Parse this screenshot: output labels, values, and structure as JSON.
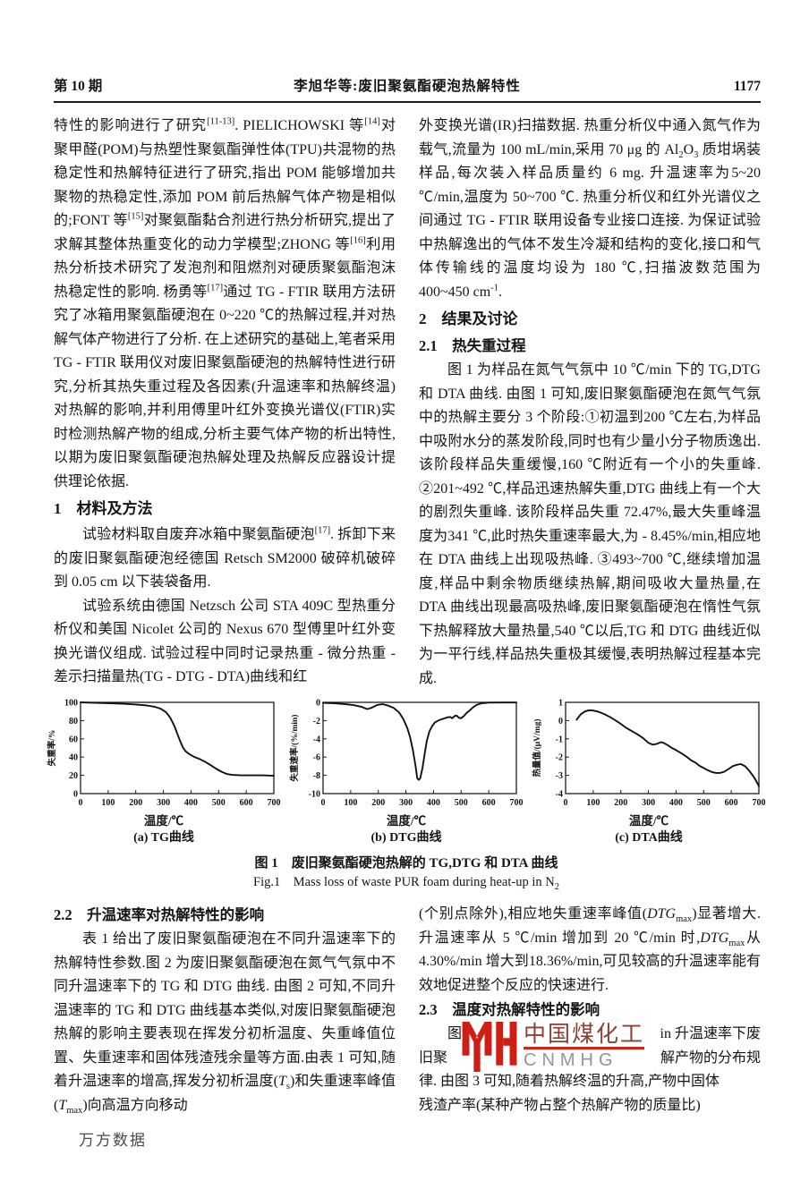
{
  "header": {
    "issue": "第 10 期",
    "title": "李旭华等:废旧聚氨酯硬泡热解特性",
    "page_number": "1177"
  },
  "left_top": {
    "p1": "特性的影响进行了研究<sup>[11-13]</sup>. PIELICHOWSKI 等<sup>[14]</sup>对聚甲醛(POM)与热塑性聚氨酯弹性体(TPU)共混物的热稳定性和热解特征进行了研究,指出 POM 能够增加共聚物的热稳定性,添加 POM 前后热解气体产物是相似的;FONT 等<sup>[15]</sup>对聚氨酯黏合剂进行热分析研究,提出了求解其整体热重变化的动力学模型;ZHONG 等<sup>[16]</sup>利用热分析技术研究了发泡剂和阻燃剂对硬质聚氨酯泡沫热稳定性的影响. 杨勇等<sup>[17]</sup>通过 TG - FTIR 联用方法研究了冰箱用聚氨酯硬泡在 0~220 ℃的热解过程,并对热解气体产物进行了分析. 在上述研究的基础上,笔者采用 TG - FTIR 联用仪对废旧聚氨酯硬泡的热解特性进行研究,分析其热失重过程及各因素(升温速率和热解终温)对热解的影响,并利用傅里叶红外变换光谱仪(FTIR)实时检测热解产物的组成,分析主要气体产物的析出特性,以期为废旧聚氨酯硬泡热解处理及热解反应器设计提供理论依据.",
    "h1": "1　材料及方法",
    "p2": "试验材料取自废弃冰箱中聚氨酯硬泡<sup>[17]</sup>. 拆卸下来的废旧聚氨酯硬泡经德国 Retsch SM2000 破碎机破碎到 0.05 cm 以下装袋备用.",
    "p3": "试验系统由德国 Netzsch 公司 STA 409C 型热重分析仪和美国 Nicolet 公司的 Nexus 670 型傅里叶红外变换光谱仪组成. 试验过程中同时记录热重 - 微分热重 - 差示扫描量热(TG - DTG - DTA)曲线和红"
  },
  "right_top": {
    "p1": "外变换光谱(IR)扫描数据. 热重分析仪中通入氮气作为载气,流量为 100 mL/min,采用 70 μg 的 Al<sub>2</sub>O<sub>3</sub> 质坩埚装样品,每次装入样品质量约 6 mg. 升温速率为5~20 ℃/min,温度为 50~700 ℃. 热重分析仪和红外光谱仪之间通过 TG - FTIR 联用设备专业接口连接. 为保证试验中热解逸出的气体不发生冷凝和结构的变化,接口和气体传输线的温度均设为 180 ℃,扫描波数范围为 400~450 cm<sup>-1</sup>.",
    "h2": "2　结果及讨论",
    "h21": "2.1　热失重过程",
    "p2": "图 1 为样品在氮气气氛中 10 ℃/min 下的 TG,DTG 和 DTA 曲线. 由图 1 可知,废旧聚氨酯硬泡在氮气气氛中的热解主要分 3 个阶段:①初温到200 ℃左右,为样品中吸附水分的蒸发阶段,同时也有少量小分子物质逸出. 该阶段样品失重缓慢,160 ℃附近有一个小的失重峰. ②201~492 ℃,样品迅速热解失重,DTG 曲线上有一个大的剧烈失重峰. 该阶段样品失重 72.47%,最大失重峰温度为341 ℃,此时热失重速率最大,为 - 8.45%/min,相应地在 DTA 曲线上出现吸热峰. ③493~700 ℃,继续增加温度,样品中剩余物质继续热解,期间吸收大量热量,在 DTA 曲线出现最高吸热峰,废旧聚氨酯硬泡在惰性气氛下热解释放大量热量,540 ℃以后,TG 和 DTG 曲线近似为一平行线,样品热失重极其缓慢,表明热解过程基本完成."
  },
  "figure": {
    "caption_zh": "图 1　废旧聚氨酯硬泡热解的 TG,DTG 和 DTA 曲线",
    "caption_en": "Fig.1　Mass loss of waste PUR foam during heat-up in N<sub>2</sub>"
  },
  "left_bottom": {
    "h22": "2.2　升温速率对热解特性的影响",
    "p1": "表 1 给出了废旧聚氨酯硬泡在不同升温速率下的热解特性参数.图 2 为废旧聚氨酯硬泡在氮气气氛中不同升温速率下的 TG 和 DTG 曲线. 由图 2 可知,不同升温速率的 TG 和 DTG 曲线基本类似,对废旧聚氨酯硬泡热解的影响主要表现在挥发分初析温度、失重峰值位置、失重速率和固体残渣残余量等方面.由表 1 可知,随着升温速率的增高,挥发分初析温度(<i>T</i><sub>s</sub>)和失重速率峰值(<i>T</i><sub>max</sub>)向高温方向移动"
  },
  "right_bottom": {
    "p1": "(个别点除外),相应地失重速率峰值(<i>DTG</i><sub>max</sub>)显著增大. 升温速率从 5 ℃/min 增加到 20 ℃/min 时,<i>DTG</i><sub>max</sub>从4.30%/min 增大到18.36%/min,可见较高的升温速率能有效地促进整个反应的快速进行.",
    "h23": "2.3　温度对热解特性的影响",
    "wm_line1_left": "图",
    "wm_line1_right": "in 升温速率下废",
    "wm_line2_left": "旧聚",
    "wm_line2_right": "解产物的分布规",
    "p2_line3": "律. 由图 3 可知,随着热解终温的升高,产物中固体",
    "p2_line4": "残渣产率(某种产物占整个热解产物的质量比)"
  },
  "watermark": {
    "logo": "cnmhg-logo",
    "title": "中国煤化工",
    "subtitle": "CNMHG",
    "logo_color": "#cf1f15",
    "underline_color": "#d22415",
    "title_color": "#8b4034",
    "subtitle_color": "#8f979c"
  },
  "footer": {
    "wanfang": "万方数据"
  },
  "chart_data": [
    {
      "type": "line",
      "title": "(a) TG曲线",
      "xlabel": "温度/℃",
      "ylabel": "失重率/%",
      "xlim": [
        0,
        700
      ],
      "ylim": [
        0,
        100
      ],
      "xticks": [
        0,
        100,
        200,
        300,
        400,
        500,
        600,
        700
      ],
      "yticks": [
        0,
        20,
        40,
        60,
        80,
        100
      ],
      "grid": false,
      "points": [
        [
          0,
          100
        ],
        [
          40,
          99.6
        ],
        [
          80,
          99.2
        ],
        [
          120,
          98.8
        ],
        [
          160,
          98.3
        ],
        [
          200,
          97.6
        ],
        [
          240,
          96.6
        ],
        [
          270,
          95
        ],
        [
          290,
          93
        ],
        [
          310,
          89
        ],
        [
          325,
          83
        ],
        [
          340,
          74
        ],
        [
          350,
          66
        ],
        [
          360,
          58
        ],
        [
          370,
          51
        ],
        [
          380,
          46.5
        ],
        [
          395,
          43
        ],
        [
          410,
          40.5
        ],
        [
          430,
          38
        ],
        [
          450,
          35
        ],
        [
          470,
          31.5
        ],
        [
          490,
          27.5
        ],
        [
          510,
          24
        ],
        [
          530,
          21.5
        ],
        [
          550,
          20.5
        ],
        [
          580,
          20
        ],
        [
          620,
          20
        ],
        [
          660,
          20
        ],
        [
          700,
          19.5
        ]
      ]
    },
    {
      "type": "line",
      "title": "(b) DTG曲线",
      "xlabel": "温度/℃",
      "ylabel": "失重速率/(%/min)",
      "xlim": [
        0,
        700
      ],
      "ylim": [
        -10,
        0
      ],
      "xticks": [
        0,
        100,
        200,
        300,
        400,
        500,
        600,
        700
      ],
      "yticks": [
        0,
        -2,
        -4,
        -6,
        -8,
        -10
      ],
      "grid": false,
      "peak_note": "max loss rate -8.45 %/min at 341 ℃",
      "points": [
        [
          0,
          -0.05
        ],
        [
          40,
          -0.1
        ],
        [
          80,
          -0.2
        ],
        [
          110,
          -0.3
        ],
        [
          140,
          -0.5
        ],
        [
          160,
          -0.75
        ],
        [
          175,
          -0.6
        ],
        [
          195,
          -0.3
        ],
        [
          215,
          -0.2
        ],
        [
          235,
          -0.35
        ],
        [
          255,
          -0.6
        ],
        [
          275,
          -1.1
        ],
        [
          290,
          -1.8
        ],
        [
          305,
          -2.8
        ],
        [
          315,
          -3.8
        ],
        [
          325,
          -5.2
        ],
        [
          335,
          -7.0
        ],
        [
          341,
          -8.3
        ],
        [
          346,
          -8.5
        ],
        [
          352,
          -8.3
        ],
        [
          360,
          -7.2
        ],
        [
          368,
          -5.6
        ],
        [
          376,
          -4.2
        ],
        [
          385,
          -3.2
        ],
        [
          395,
          -2.6
        ],
        [
          405,
          -2.2
        ],
        [
          420,
          -1.95
        ],
        [
          435,
          -1.8
        ],
        [
          450,
          -1.65
        ],
        [
          460,
          -1.6
        ],
        [
          468,
          -1.75
        ],
        [
          476,
          -1.5
        ],
        [
          484,
          -1.45
        ],
        [
          492,
          -1.7
        ],
        [
          500,
          -1.75
        ],
        [
          510,
          -1.5
        ],
        [
          520,
          -1.15
        ],
        [
          532,
          -0.85
        ],
        [
          545,
          -0.5
        ],
        [
          558,
          -0.25
        ],
        [
          575,
          -0.1
        ],
        [
          600,
          -0.03
        ],
        [
          650,
          -0.02
        ],
        [
          700,
          -0.02
        ]
      ]
    },
    {
      "type": "line",
      "title": "(c) DTA曲线",
      "xlabel": "温度/℃",
      "ylabel": "热量值/(μV/mg)",
      "xlim": [
        0,
        700
      ],
      "ylim": [
        -4,
        1
      ],
      "xticks": [
        0,
        100,
        200,
        300,
        400,
        500,
        600,
        700
      ],
      "yticks": [
        1,
        0,
        -1,
        -2,
        -3,
        -4
      ],
      "grid": false,
      "points": [
        [
          40,
          0.05
        ],
        [
          55,
          0.35
        ],
        [
          70,
          0.5
        ],
        [
          85,
          0.57
        ],
        [
          100,
          0.55
        ],
        [
          120,
          0.48
        ],
        [
          140,
          0.36
        ],
        [
          160,
          0.2
        ],
        [
          180,
          0.02
        ],
        [
          200,
          -0.18
        ],
        [
          220,
          -0.4
        ],
        [
          240,
          -0.58
        ],
        [
          260,
          -0.75
        ],
        [
          280,
          -0.95
        ],
        [
          300,
          -1.22
        ],
        [
          315,
          -1.32
        ],
        [
          330,
          -1.28
        ],
        [
          345,
          -1.18
        ],
        [
          355,
          -1.22
        ],
        [
          370,
          -1.35
        ],
        [
          385,
          -1.5
        ],
        [
          400,
          -1.62
        ],
        [
          420,
          -1.8
        ],
        [
          440,
          -2.0
        ],
        [
          455,
          -2.18
        ],
        [
          470,
          -2.3
        ],
        [
          485,
          -2.48
        ],
        [
          500,
          -2.6
        ],
        [
          515,
          -2.72
        ],
        [
          530,
          -2.82
        ],
        [
          545,
          -2.87
        ],
        [
          560,
          -2.87
        ],
        [
          575,
          -2.8
        ],
        [
          590,
          -2.65
        ],
        [
          605,
          -2.5
        ],
        [
          620,
          -2.42
        ],
        [
          635,
          -2.38
        ],
        [
          650,
          -2.5
        ],
        [
          665,
          -2.75
        ],
        [
          680,
          -3.05
        ],
        [
          690,
          -3.3
        ],
        [
          700,
          -3.6
        ]
      ]
    }
  ]
}
